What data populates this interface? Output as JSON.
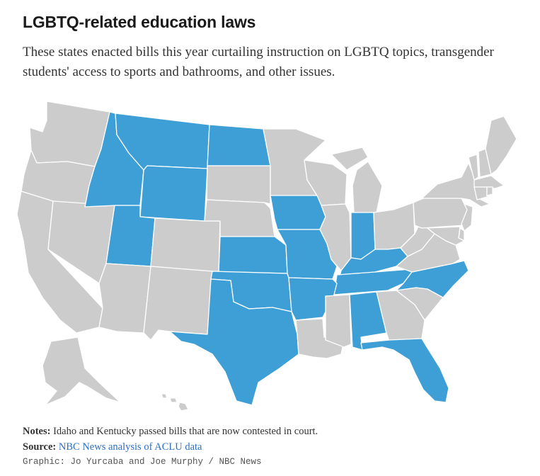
{
  "header": {
    "title": "LGBTQ-related education laws",
    "subtitle": "These states enacted bills this year curtailing instruction on LGBTQ topics, transgender students' access to sports and bathrooms, and other issues."
  },
  "colors": {
    "enacted": "#3d9fd5",
    "not_enacted": "#cccccc",
    "border": "#ffffff"
  },
  "map": {
    "enacted_states": [
      "Montana",
      "Idaho",
      "Wyoming",
      "North Dakota",
      "Utah",
      "Kansas",
      "Oklahoma",
      "Texas",
      "Iowa",
      "Missouri",
      "Arkansas",
      "Indiana",
      "Kentucky",
      "Tennessee",
      "North Carolina",
      "Alabama",
      "Florida"
    ],
    "other_states": [
      "Washington",
      "Oregon",
      "California",
      "Nevada",
      "Arizona",
      "New Mexico",
      "Colorado",
      "South Dakota",
      "Nebraska",
      "Minnesota",
      "Wisconsin",
      "Michigan",
      "Illinois",
      "Ohio",
      "Louisiana",
      "Mississippi",
      "Georgia",
      "South Carolina",
      "Virginia",
      "West Virginia",
      "Pennsylvania",
      "New York",
      "Maine",
      "Vermont",
      "New Hampshire",
      "Massachusetts",
      "Connecticut",
      "Rhode Island",
      "New Jersey",
      "Delaware",
      "Maryland",
      "Alaska",
      "Hawaii"
    ]
  },
  "footer": {
    "notes_label": "Notes:",
    "notes_text": " Idaho and Kentucky passed bills that are now contested in court.",
    "source_label": "Source:",
    "source_link": "NBC News analysis of ACLU data",
    "credit": "Graphic: Jo Yurcaba and Joe Murphy / NBC News"
  }
}
